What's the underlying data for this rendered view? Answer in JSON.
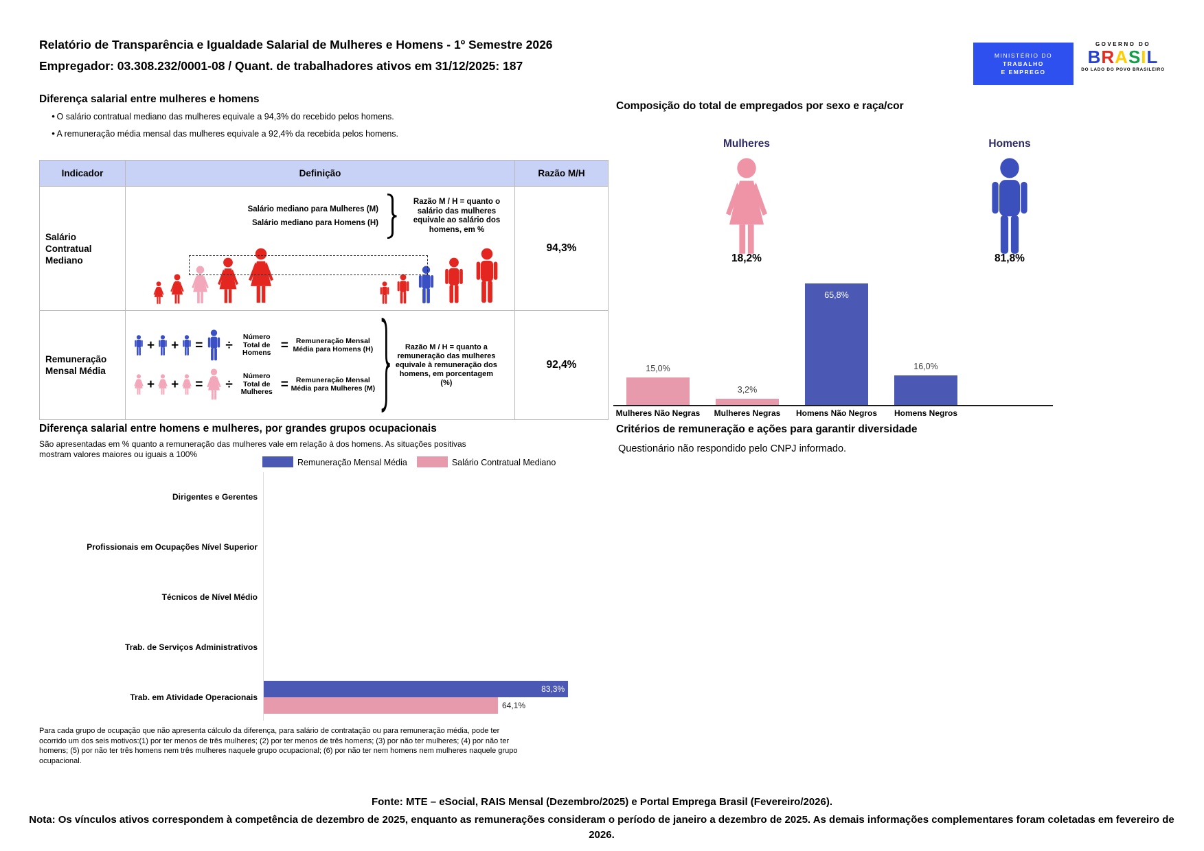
{
  "header": {
    "title_line1": "Relatório de Transparência e Igualdade Salarial de Mulheres e Homens - 1º Semestre 2026",
    "title_line2": "Empregador: 03.308.232/0001-08 / Quant. de trabalhadores ativos em 31/12/2025: 187",
    "mte_logo": {
      "line1": "MINISTÉRIO DO",
      "line2": "TRABALHO",
      "line3": "E EMPREGO"
    },
    "gov_logo": {
      "top": "GOVERNO DO",
      "brand_letters": [
        {
          "ch": "B",
          "color": "#2640d4"
        },
        {
          "ch": "R",
          "color": "#e52a20"
        },
        {
          "ch": "A",
          "color": "#ffcd00"
        },
        {
          "ch": "S",
          "color": "#139c49"
        },
        {
          "ch": "I",
          "color": "#ffcd00"
        },
        {
          "ch": "L",
          "color": "#2640d4"
        }
      ],
      "bottom": "DO LADO DO POVO BRASILEIRO"
    }
  },
  "sym": {
    "plus": "+",
    "equals": "=",
    "divide": "÷"
  },
  "palette": {
    "red": "#e3261f",
    "pink": "#f2a7ba",
    "blue": "#3a4fc4"
  },
  "salary_gap": {
    "title": "Diferença salarial entre mulheres e homens",
    "bullets": [
      "O salário contratual mediano das mulheres equivale a 94,3% do recebido pelos homens.",
      "A remuneração média mensal das mulheres equivale a 92,4% da recebida pelos homens."
    ],
    "table": {
      "headers": [
        "Indicador",
        "Definição",
        "Razão M/H"
      ],
      "rows": [
        {
          "indicator": "Salário Contratual Mediano",
          "ratio": "94,3%",
          "def_lines": [
            "Salário mediano para Mulheres (M)",
            "Salário mediano para Homens (H)"
          ],
          "def_note": "Razão M / H = quanto o salário das mulheres equivale ao salário dos homens, em %",
          "graphic": {
            "women": [
              "red",
              "red",
              "pink",
              "red",
              "red"
            ],
            "men": [
              "red",
              "red",
              "blue",
              "red",
              "red"
            ]
          }
        },
        {
          "indicator": "Remuneração Mensal Média",
          "ratio": "92,4%",
          "men": {
            "divisor": "Número Total de Homens",
            "result": "Remuneração Mensal Média para Homens (H)"
          },
          "women": {
            "divisor": "Número Total de Mulheres",
            "result": "Remuneração Mensal Média para Mulheres (M)"
          },
          "def_note": "Razão M / H = quanto a remuneração das mulheres equivale à remuneração dos homens, em porcentagem (%)"
        }
      ]
    }
  },
  "occupational": {
    "title": "Diferença salarial entre homens e mulheres, por grandes grupos ocupacionais",
    "subtitle": "São apresentadas em % quanto a remuneração das mulheres vale em relação à dos homens. As situações positivas mostram valores maiores ou iguais a 100%",
    "footnote": "Para cada grupo de ocupação que não apresenta cálculo da diferença, para salário de contratação ou para remuneração média, pode ter ocorrido um dos seis motivos:(1) por ter menos de três mulheres; (2) por ter menos de três homens; (3) por não ter mulheres; (4) por não ter homens; (5) por não ter três homens nem três mulheres naquele grupo ocupacional; (6) por não ter nem homens nem mulheres naquele grupo ocupacional.",
    "chart_data": {
      "type": "bar",
      "orientation": "horizontal",
      "categories": [
        "Dirigentes e Gerentes",
        "Profissionais em Ocupações Nível Superior",
        "Técnicos de Nível Médio",
        "Trab. de Serviços Administrativos",
        "Trab. em Atividade Operacionais"
      ],
      "series": [
        {
          "name": "Remuneração Mensal Média",
          "color": "#4c59b4",
          "values": [
            null,
            null,
            null,
            null,
            83.3
          ],
          "labels": [
            null,
            null,
            null,
            null,
            "83,3%"
          ]
        },
        {
          "name": "Salário Contratual Mediano",
          "color": "#e79aab",
          "values": [
            null,
            null,
            null,
            null,
            64.1
          ],
          "labels": [
            null,
            null,
            null,
            null,
            "64,1%"
          ]
        }
      ],
      "xlim": [
        0,
        100
      ],
      "unit": "%",
      "legend_position": "top"
    }
  },
  "composition": {
    "title": "Composição do total de empregados por sexo e raça/cor",
    "groups": [
      {
        "label": "Mulheres",
        "pct": "18,2%",
        "value": 18.2,
        "color": "#ef94a7"
      },
      {
        "label": "Homens",
        "pct": "81,8%",
        "value": 81.8,
        "color": "#3b50bd"
      }
    ],
    "chart_data": {
      "type": "bar",
      "categories": [
        "Mulheres Não Negras",
        "Mulheres Negras",
        "Homens Não Negros",
        "Homens Negros"
      ],
      "values": [
        15.0,
        3.2,
        65.8,
        16.0
      ],
      "labels": [
        "15,0%",
        "3,2%",
        "65,8%",
        "16,0%"
      ],
      "colors": [
        "#e79aab",
        "#e79aab",
        "#4c59b4",
        "#4c59b4"
      ],
      "label_inside": [
        false,
        false,
        true,
        false
      ],
      "ylim": [
        0,
        70
      ],
      "unit": "%"
    }
  },
  "criteria": {
    "title": "Critérios de remuneração e ações para garantir diversidade",
    "body": "Questionário não respondido pelo CNPJ informado."
  },
  "footer": {
    "fonte": "Fonte: MTE – eSocial, RAIS Mensal (Dezembro/2025) e Portal Emprega Brasil (Fevereiro/2026).",
    "nota": "Nota: Os vínculos ativos correspondem à competência de dezembro de 2025, enquanto as remunerações consideram o período de janeiro a dezembro de 2025. As demais informações complementares foram coletadas em fevereiro de 2026."
  }
}
